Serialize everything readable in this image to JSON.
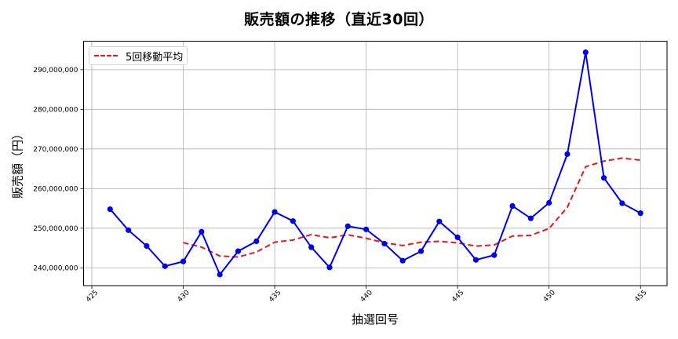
{
  "chart_data": {
    "type": "line",
    "title": "販売額の推移（直近30回）",
    "xlabel": "抽選回号",
    "ylabel": "販売額（円）",
    "x": [
      426,
      427,
      428,
      429,
      430,
      431,
      432,
      433,
      434,
      435,
      436,
      437,
      438,
      439,
      440,
      441,
      442,
      443,
      444,
      445,
      446,
      447,
      448,
      449,
      450,
      451,
      452,
      453,
      454,
      455
    ],
    "series": [
      {
        "name": "販売額",
        "style": "solid line with circle markers",
        "color": "#0000ee",
        "values": [
          254800000,
          249500000,
          245500000,
          240400000,
          241600000,
          249100000,
          238300000,
          244200000,
          246700000,
          254100000,
          251800000,
          245200000,
          240100000,
          250500000,
          249700000,
          246100000,
          241800000,
          244200000,
          251700000,
          247700000,
          242000000,
          243200000,
          255600000,
          252500000,
          256400000,
          268700000,
          294400000,
          262700000,
          256300000,
          253800000
        ]
      },
      {
        "name": "5回移動平均",
        "style": "dashed line",
        "color": "#e41a1c",
        "x_start": 430,
        "values": [
          246360000,
          245220000,
          242980000,
          242720000,
          243980000,
          246480000,
          247020000,
          248400000,
          247580000,
          248340000,
          247460000,
          246320000,
          245640000,
          246460000,
          246700000,
          246300000,
          245480000,
          245760000,
          248040000,
          248200000,
          249940000,
          255280000,
          265520000,
          266940000,
          267700000,
          267180000
        ]
      }
    ],
    "xticks": [
      425,
      430,
      435,
      440,
      445,
      450,
      455
    ],
    "yticks": [
      240000000,
      250000000,
      260000000,
      270000000,
      280000000,
      290000000
    ],
    "ytick_labels": [
      "240,000,000",
      "250,000,000",
      "260,000,000",
      "270,000,000",
      "280,000,000",
      "290,000,000"
    ],
    "xlim": [
      424.55,
      456.45
    ],
    "ylim": [
      235500000,
      297200000
    ],
    "grid": true,
    "legend": {
      "position": "upper left",
      "entries": [
        "5回移動平均"
      ]
    }
  },
  "legend": {
    "label": "5回移動平均"
  },
  "colors": {
    "series": "#0000ee",
    "moving_average": "#e41a1c",
    "grid": "#b0b0b0"
  }
}
